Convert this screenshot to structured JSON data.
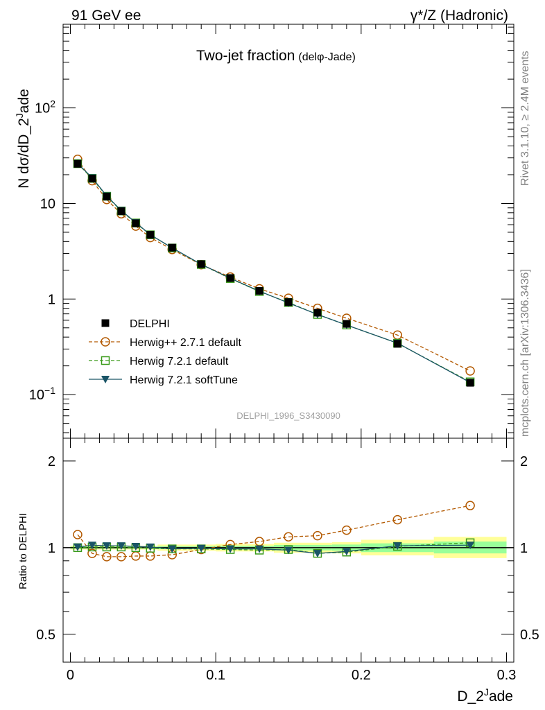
{
  "header": {
    "left": "91 GeV ee",
    "right": "γ*/Z (Hadronic)"
  },
  "side_labels": {
    "rivet": "Rivet 3.1.10, ≥ 2.4M events",
    "mcplots": "mcplots.cern.ch [arXiv:1306.3436]"
  },
  "chart_data": [
    {
      "type": "scatter",
      "title": "Two-jet fraction",
      "subtitle": "(delφ-Jade)",
      "ylabel": "N dσ/dD_2^Jade",
      "watermark": "DELPHI_1996_S3430090",
      "yscale": "log",
      "xlim": [
        -0.005,
        0.305
      ],
      "ylim": [
        0.035,
        750
      ],
      "x_ticks": [
        0,
        0.1,
        0.2,
        0.3
      ],
      "y_ticks": [
        {
          "value": 0.1,
          "base": "10",
          "exp": "−1"
        },
        {
          "value": 1,
          "base": "1",
          "exp": ""
        },
        {
          "value": 10,
          "base": "10",
          "exp": ""
        },
        {
          "value": 100,
          "base": "10",
          "exp": "2"
        }
      ],
      "legend_position": "lower-left",
      "series": [
        {
          "name": "DELPHI",
          "marker": "filled-square",
          "color": "#000000",
          "x": [
            0.005,
            0.015,
            0.025,
            0.035,
            0.045,
            0.055,
            0.07,
            0.09,
            0.11,
            0.13,
            0.15,
            0.17,
            0.19,
            0.225,
            0.275
          ],
          "y": [
            26.0,
            18.2,
            11.8,
            8.3,
            6.2,
            4.7,
            3.45,
            2.32,
            1.66,
            1.22,
            0.93,
            0.72,
            0.55,
            0.34,
            0.133
          ]
        },
        {
          "name": "Herwig++ 2.7.1 default",
          "marker": "open-circle",
          "line": "dashed",
          "color": "#b35900",
          "x": [
            0.005,
            0.015,
            0.025,
            0.035,
            0.045,
            0.055,
            0.07,
            0.09,
            0.11,
            0.13,
            0.15,
            0.17,
            0.19,
            0.225,
            0.275
          ],
          "y": [
            29.0,
            17.3,
            11.0,
            7.8,
            5.8,
            4.4,
            3.3,
            2.29,
            1.7,
            1.28,
            1.02,
            0.8,
            0.63,
            0.42,
            0.177
          ]
        },
        {
          "name": "Herwig 7.2.1 default",
          "marker": "open-square",
          "line": "dashed",
          "color": "#3a9b1a",
          "x": [
            0.005,
            0.015,
            0.025,
            0.035,
            0.045,
            0.055,
            0.07,
            0.09,
            0.11,
            0.13,
            0.15,
            0.17,
            0.19,
            0.225,
            0.275
          ],
          "y": [
            26.1,
            18.3,
            11.9,
            8.35,
            6.25,
            4.7,
            3.42,
            2.3,
            1.64,
            1.2,
            0.92,
            0.69,
            0.535,
            0.345,
            0.136
          ]
        },
        {
          "name": "Herwig 7.2.1 softTune",
          "marker": "filled-triangle-down",
          "line": "solid",
          "color": "#1a5466",
          "x": [
            0.005,
            0.015,
            0.025,
            0.035,
            0.045,
            0.055,
            0.07,
            0.09,
            0.11,
            0.13,
            0.15,
            0.17,
            0.19,
            0.225,
            0.275
          ],
          "y": [
            26.2,
            18.6,
            12.0,
            8.45,
            6.3,
            4.72,
            3.43,
            2.31,
            1.65,
            1.21,
            0.91,
            0.69,
            0.535,
            0.346,
            0.134
          ]
        }
      ]
    },
    {
      "type": "scatter",
      "ylabel": "Ratio to DELPHI",
      "xlabel": "D_2^Jade",
      "yscale": "log",
      "xlim": [
        -0.005,
        0.305
      ],
      "ylim": [
        0.4,
        2.4
      ],
      "x_ticks": [
        0,
        0.1,
        0.2,
        0.3
      ],
      "y_ticks": [
        0.5,
        1,
        2
      ],
      "bands": [
        {
          "x0": 0.0,
          "x1": 0.01,
          "yellow": [
            0.985,
            1.015
          ],
          "green": [
            0.992,
            1.008
          ]
        },
        {
          "x0": 0.01,
          "x1": 0.06,
          "yellow": [
            0.985,
            1.015
          ],
          "green": [
            0.992,
            1.008
          ]
        },
        {
          "x0": 0.06,
          "x1": 0.1,
          "yellow": [
            0.975,
            1.025
          ],
          "green": [
            0.988,
            1.012
          ]
        },
        {
          "x0": 0.1,
          "x1": 0.14,
          "yellow": [
            0.97,
            1.03
          ],
          "green": [
            0.985,
            1.015
          ]
        },
        {
          "x0": 0.14,
          "x1": 0.18,
          "yellow": [
            0.96,
            1.04
          ],
          "green": [
            0.978,
            1.022
          ]
        },
        {
          "x0": 0.18,
          "x1": 0.2,
          "yellow": [
            0.955,
            1.045
          ],
          "green": [
            0.975,
            1.025
          ]
        },
        {
          "x0": 0.2,
          "x1": 0.25,
          "yellow": [
            0.94,
            1.065
          ],
          "green": [
            0.965,
            1.035
          ]
        },
        {
          "x0": 0.25,
          "x1": 0.3,
          "yellow": [
            0.92,
            1.09
          ],
          "green": [
            0.955,
            1.05
          ]
        }
      ],
      "series": [
        {
          "name": "Herwig++ 2.7.1 default",
          "marker": "open-circle",
          "line": "dashed",
          "color": "#b35900",
          "x": [
            0.005,
            0.015,
            0.025,
            0.035,
            0.045,
            0.055,
            0.07,
            0.09,
            0.11,
            0.13,
            0.15,
            0.17,
            0.19,
            0.225,
            0.275
          ],
          "y": [
            1.11,
            0.955,
            0.93,
            0.93,
            0.935,
            0.935,
            0.945,
            0.985,
            1.025,
            1.05,
            1.09,
            1.1,
            1.15,
            1.25,
            1.4
          ]
        },
        {
          "name": "Herwig 7.2.1 default",
          "marker": "open-square",
          "line": "dashed",
          "color": "#3a9b1a",
          "x": [
            0.005,
            0.015,
            0.025,
            0.035,
            0.045,
            0.055,
            0.07,
            0.09,
            0.11,
            0.13,
            0.15,
            0.17,
            0.19,
            0.225,
            0.275
          ],
          "y": [
            1.0,
            1.005,
            1.005,
            1.005,
            1.0,
            0.995,
            0.99,
            0.99,
            0.985,
            0.98,
            0.985,
            0.955,
            0.965,
            1.01,
            1.04
          ]
        },
        {
          "name": "Herwig 7.2.1 softTune",
          "marker": "filled-triangle-down",
          "line": "solid",
          "color": "#1a5466",
          "x": [
            0.005,
            0.015,
            0.025,
            0.035,
            0.045,
            0.055,
            0.07,
            0.09,
            0.11,
            0.13,
            0.15,
            0.17,
            0.19,
            0.225,
            0.275
          ],
          "y": [
            1.005,
            1.02,
            1.015,
            1.015,
            1.01,
            1.005,
            0.99,
            0.995,
            0.99,
            0.99,
            0.98,
            0.955,
            0.97,
            1.015,
            1.02
          ]
        }
      ]
    }
  ]
}
